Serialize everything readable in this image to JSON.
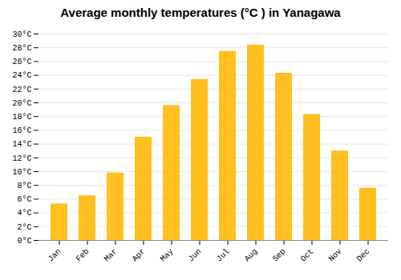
{
  "chart_data": {
    "type": "bar",
    "title": "Average monthly temperatures (°C ) in Yanagawa",
    "categories": [
      "Jan",
      "Feb",
      "Mar",
      "Apr",
      "May",
      "Jun",
      "Jul",
      "Aug",
      "Sep",
      "Oct",
      "Nov",
      "Dec"
    ],
    "values": [
      5.3,
      6.5,
      9.8,
      15.0,
      19.6,
      23.4,
      27.5,
      28.4,
      24.3,
      18.3,
      13.0,
      7.6
    ],
    "color": "#FFC020",
    "ylim": [
      0,
      30
    ],
    "yticks": [
      {
        "value": 0,
        "label": "0°C"
      },
      {
        "value": 2,
        "label": "2°C"
      },
      {
        "value": 4,
        "label": "4°C"
      },
      {
        "value": 6,
        "label": "6°C"
      },
      {
        "value": 8,
        "label": "8°C"
      },
      {
        "value": 10,
        "label": "10°C"
      },
      {
        "value": 12,
        "label": "12°C"
      },
      {
        "value": 14,
        "label": "14°C"
      },
      {
        "value": 16,
        "label": "16°C"
      },
      {
        "value": 18,
        "label": "18°C"
      },
      {
        "value": 20,
        "label": "20°C"
      },
      {
        "value": 22,
        "label": "22°C"
      },
      {
        "value": 24,
        "label": "24°C"
      },
      {
        "value": 26,
        "label": "26°C"
      },
      {
        "value": 28,
        "label": "28°C"
      },
      {
        "value": 30,
        "label": "30°C"
      }
    ],
    "grid": true
  }
}
